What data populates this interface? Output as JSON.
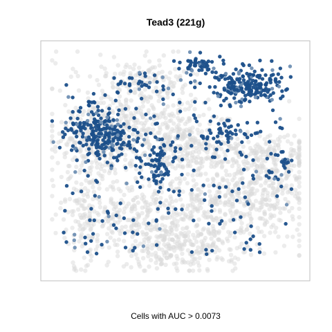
{
  "chart_data": {
    "type": "scatter",
    "title": "Tead3 (221g)",
    "xlabel": "Cells with AUC > 0.0073",
    "ylabel": "",
    "grid": false,
    "legend": "none",
    "axes_visible": false,
    "xlim": [
      0,
      100
    ],
    "ylim": [
      0,
      100
    ],
    "colors": {
      "background_cells": "#d9d9d9",
      "high_auc_cells": "#1b4f8a",
      "mid_auc_cells": "#6f8fb3",
      "frame": "#bdbdbd"
    },
    "series": [
      {
        "role": "background",
        "clusters": [
          {
            "cx": 35,
            "cy": 66,
            "sx": 15,
            "sy": 13,
            "n": 420
          },
          {
            "cx": 18,
            "cy": 58,
            "sx": 8,
            "sy": 8,
            "n": 160
          },
          {
            "cx": 35,
            "cy": 24,
            "sx": 13,
            "sy": 9,
            "n": 260
          },
          {
            "cx": 14,
            "cy": 28,
            "sx": 5,
            "sy": 12,
            "n": 120
          },
          {
            "cx": 62,
            "cy": 22,
            "sx": 15,
            "sy": 10,
            "n": 280
          },
          {
            "cx": 70,
            "cy": 36,
            "sx": 8,
            "sy": 6,
            "n": 110
          },
          {
            "cx": 88,
            "cy": 38,
            "sx": 7,
            "sy": 10,
            "n": 200
          },
          {
            "cx": 76,
            "cy": 52,
            "sx": 16,
            "sy": 5,
            "n": 220
          },
          {
            "cx": 48,
            "cy": 13,
            "sx": 8,
            "sy": 5,
            "n": 120
          },
          {
            "cx": 54,
            "cy": 58,
            "sx": 10,
            "sy": 7,
            "n": 150
          },
          {
            "cx": 40,
            "cy": 87,
            "sx": 8,
            "sy": 4,
            "n": 80
          }
        ]
      },
      {
        "role": "high",
        "clusters": [
          {
            "cx": 21,
            "cy": 63,
            "sx": 7,
            "sy": 5,
            "n": 230
          },
          {
            "cx": 77,
            "cy": 83,
            "sx": 7,
            "sy": 4,
            "n": 200
          },
          {
            "cx": 58,
            "cy": 92,
            "sx": 3.5,
            "sy": 2.5,
            "n": 50
          },
          {
            "cx": 69,
            "cy": 62,
            "sx": 4,
            "sy": 3,
            "n": 40
          },
          {
            "cx": 43,
            "cy": 48,
            "sx": 4,
            "sy": 5,
            "n": 70
          },
          {
            "cx": 35,
            "cy": 85,
            "sx": 4,
            "sy": 2,
            "n": 18
          },
          {
            "cx": 90,
            "cy": 48,
            "sx": 3,
            "sy": 4,
            "n": 20
          }
        ],
        "scattered": 240
      }
    ]
  }
}
